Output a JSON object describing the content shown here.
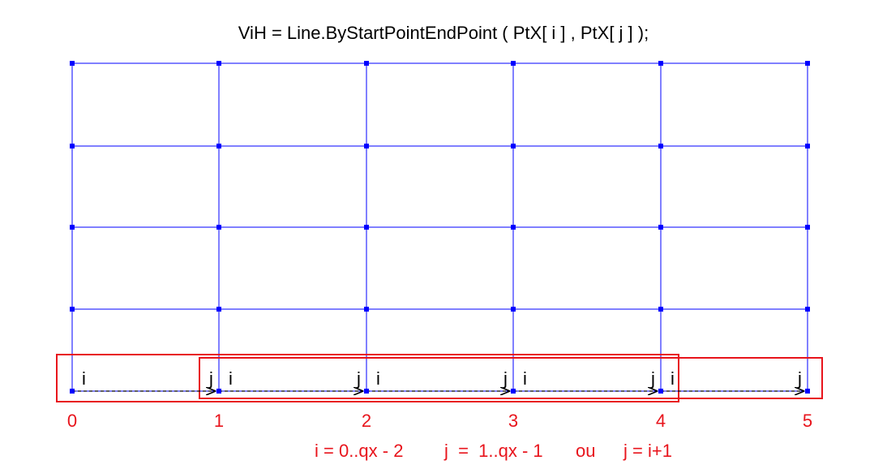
{
  "title": "ViH = Line.ByStartPointEndPoint ( PtX[ i ] , PtX[ j ] );",
  "footer": {
    "i_range": "i = 0..qx - 2",
    "j_range": "j  =  1..qx - 1",
    "ou": "ou",
    "j_alt": "j = i+1"
  },
  "grid": {
    "columns": 6,
    "rows": 5,
    "column_labels": [
      "0",
      "1",
      "2",
      "3",
      "4",
      "5"
    ]
  },
  "segments": [
    {
      "start_label": "i",
      "end_label": "j",
      "from": 0,
      "to": 1
    },
    {
      "start_label": "i",
      "end_label": "j",
      "from": 1,
      "to": 2
    },
    {
      "start_label": "i",
      "end_label": "j",
      "from": 2,
      "to": 3
    },
    {
      "start_label": "i",
      "end_label": "j",
      "from": 3,
      "to": 4
    },
    {
      "start_label": "i",
      "end_label": "j",
      "from": 4,
      "to": 5
    }
  ],
  "highlight_boxes": [
    {
      "from": 0,
      "to": 4
    },
    {
      "from": 1,
      "to": 5
    }
  ],
  "colors": {
    "grid": "#0000ff",
    "node": "#0000ff",
    "highlight": "#e8141c",
    "arrow": "#000000",
    "labels": "#e8141c"
  }
}
